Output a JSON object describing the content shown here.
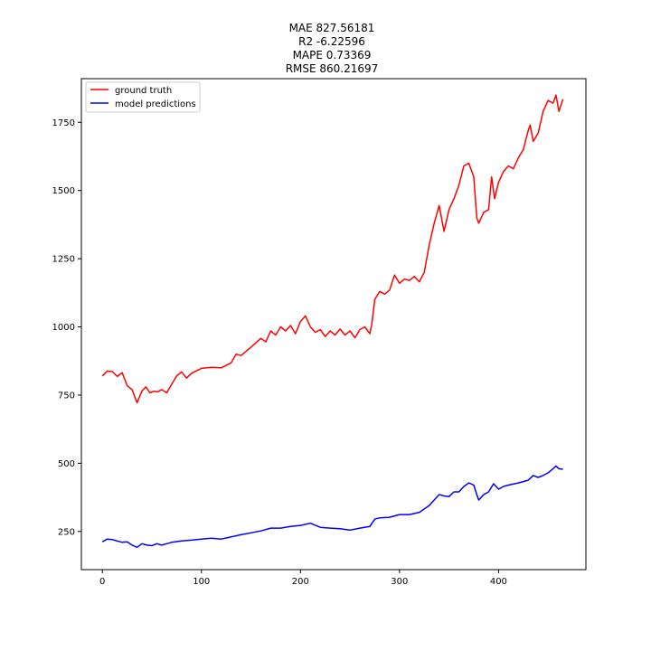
{
  "chart_data": {
    "type": "line",
    "title_lines": [
      "MAE 827.56181",
      "R2 -6.22596",
      "MAPE 0.73369",
      "RMSE 860.21697"
    ],
    "xlabel": "",
    "ylabel": "",
    "xlim": [
      -21.2,
      488.2
    ],
    "ylim": [
      110,
      1910
    ],
    "x_ticks": [
      0,
      100,
      200,
      300,
      400
    ],
    "y_ticks": [
      250,
      500,
      750,
      1000,
      1250,
      1500,
      1750
    ],
    "grid": false,
    "legend": {
      "position": "top-left"
    },
    "series": [
      {
        "name": "ground truth",
        "color": "#ff0000",
        "points": [
          [
            0,
            820
          ],
          [
            5,
            838
          ],
          [
            10,
            836
          ],
          [
            15,
            818
          ],
          [
            20,
            832
          ],
          [
            25,
            785
          ],
          [
            30,
            770
          ],
          [
            33,
            740
          ],
          [
            35,
            722
          ],
          [
            40,
            765
          ],
          [
            44,
            780
          ],
          [
            48,
            758
          ],
          [
            52,
            764
          ],
          [
            56,
            762
          ],
          [
            60,
            770
          ],
          [
            65,
            758
          ],
          [
            70,
            790
          ],
          [
            75,
            820
          ],
          [
            80,
            835
          ],
          [
            85,
            812
          ],
          [
            90,
            830
          ],
          [
            100,
            848
          ],
          [
            110,
            852
          ],
          [
            120,
            850
          ],
          [
            130,
            868
          ],
          [
            135,
            900
          ],
          [
            140,
            895
          ],
          [
            150,
            925
          ],
          [
            160,
            958
          ],
          [
            165,
            945
          ],
          [
            170,
            985
          ],
          [
            175,
            970
          ],
          [
            180,
            1000
          ],
          [
            185,
            985
          ],
          [
            190,
            1005
          ],
          [
            195,
            975
          ],
          [
            200,
            1020
          ],
          [
            205,
            1040
          ],
          [
            210,
            1000
          ],
          [
            215,
            980
          ],
          [
            220,
            990
          ],
          [
            225,
            965
          ],
          [
            230,
            985
          ],
          [
            235,
            970
          ],
          [
            240,
            992
          ],
          [
            245,
            970
          ],
          [
            250,
            985
          ],
          [
            255,
            960
          ],
          [
            260,
            990
          ],
          [
            265,
            1000
          ],
          [
            270,
            975
          ],
          [
            272,
            1010
          ],
          [
            275,
            1100
          ],
          [
            280,
            1130
          ],
          [
            285,
            1120
          ],
          [
            290,
            1135
          ],
          [
            295,
            1190
          ],
          [
            300,
            1160
          ],
          [
            305,
            1175
          ],
          [
            310,
            1170
          ],
          [
            315,
            1185
          ],
          [
            320,
            1165
          ],
          [
            325,
            1200
          ],
          [
            330,
            1300
          ],
          [
            335,
            1380
          ],
          [
            340,
            1445
          ],
          [
            345,
            1350
          ],
          [
            350,
            1430
          ],
          [
            355,
            1470
          ],
          [
            360,
            1520
          ],
          [
            365,
            1590
          ],
          [
            370,
            1600
          ],
          [
            375,
            1550
          ],
          [
            378,
            1400
          ],
          [
            380,
            1380
          ],
          [
            385,
            1420
          ],
          [
            390,
            1430
          ],
          [
            393,
            1550
          ],
          [
            396,
            1470
          ],
          [
            400,
            1530
          ],
          [
            405,
            1570
          ],
          [
            410,
            1590
          ],
          [
            415,
            1580
          ],
          [
            420,
            1620
          ],
          [
            425,
            1650
          ],
          [
            430,
            1720
          ],
          [
            432,
            1740
          ],
          [
            435,
            1680
          ],
          [
            440,
            1710
          ],
          [
            445,
            1790
          ],
          [
            450,
            1830
          ],
          [
            455,
            1820
          ],
          [
            458,
            1850
          ],
          [
            461,
            1790
          ],
          [
            465,
            1835
          ]
        ]
      },
      {
        "name": "model predictions",
        "color": "#0000ff",
        "points": [
          [
            0,
            212
          ],
          [
            5,
            222
          ],
          [
            10,
            220
          ],
          [
            15,
            215
          ],
          [
            20,
            210
          ],
          [
            25,
            212
          ],
          [
            30,
            200
          ],
          [
            35,
            192
          ],
          [
            40,
            205
          ],
          [
            45,
            200
          ],
          [
            50,
            198
          ],
          [
            55,
            205
          ],
          [
            60,
            200
          ],
          [
            65,
            205
          ],
          [
            70,
            210
          ],
          [
            80,
            215
          ],
          [
            90,
            218
          ],
          [
            100,
            222
          ],
          [
            110,
            225
          ],
          [
            120,
            222
          ],
          [
            130,
            230
          ],
          [
            140,
            238
          ],
          [
            150,
            245
          ],
          [
            160,
            252
          ],
          [
            170,
            262
          ],
          [
            180,
            262
          ],
          [
            190,
            268
          ],
          [
            200,
            272
          ],
          [
            210,
            280
          ],
          [
            220,
            265
          ],
          [
            230,
            262
          ],
          [
            240,
            260
          ],
          [
            250,
            255
          ],
          [
            260,
            262
          ],
          [
            270,
            268
          ],
          [
            275,
            295
          ],
          [
            280,
            300
          ],
          [
            290,
            302
          ],
          [
            300,
            312
          ],
          [
            310,
            312
          ],
          [
            320,
            320
          ],
          [
            330,
            345
          ],
          [
            340,
            385
          ],
          [
            345,
            380
          ],
          [
            350,
            378
          ],
          [
            355,
            395
          ],
          [
            360,
            395
          ],
          [
            365,
            415
          ],
          [
            370,
            428
          ],
          [
            375,
            420
          ],
          [
            378,
            385
          ],
          [
            380,
            365
          ],
          [
            385,
            385
          ],
          [
            390,
            395
          ],
          [
            395,
            425
          ],
          [
            400,
            405
          ],
          [
            405,
            415
          ],
          [
            410,
            420
          ],
          [
            420,
            428
          ],
          [
            430,
            438
          ],
          [
            435,
            455
          ],
          [
            440,
            448
          ],
          [
            445,
            455
          ],
          [
            450,
            465
          ],
          [
            455,
            480
          ],
          [
            458,
            490
          ],
          [
            461,
            480
          ],
          [
            465,
            478
          ]
        ]
      }
    ]
  }
}
